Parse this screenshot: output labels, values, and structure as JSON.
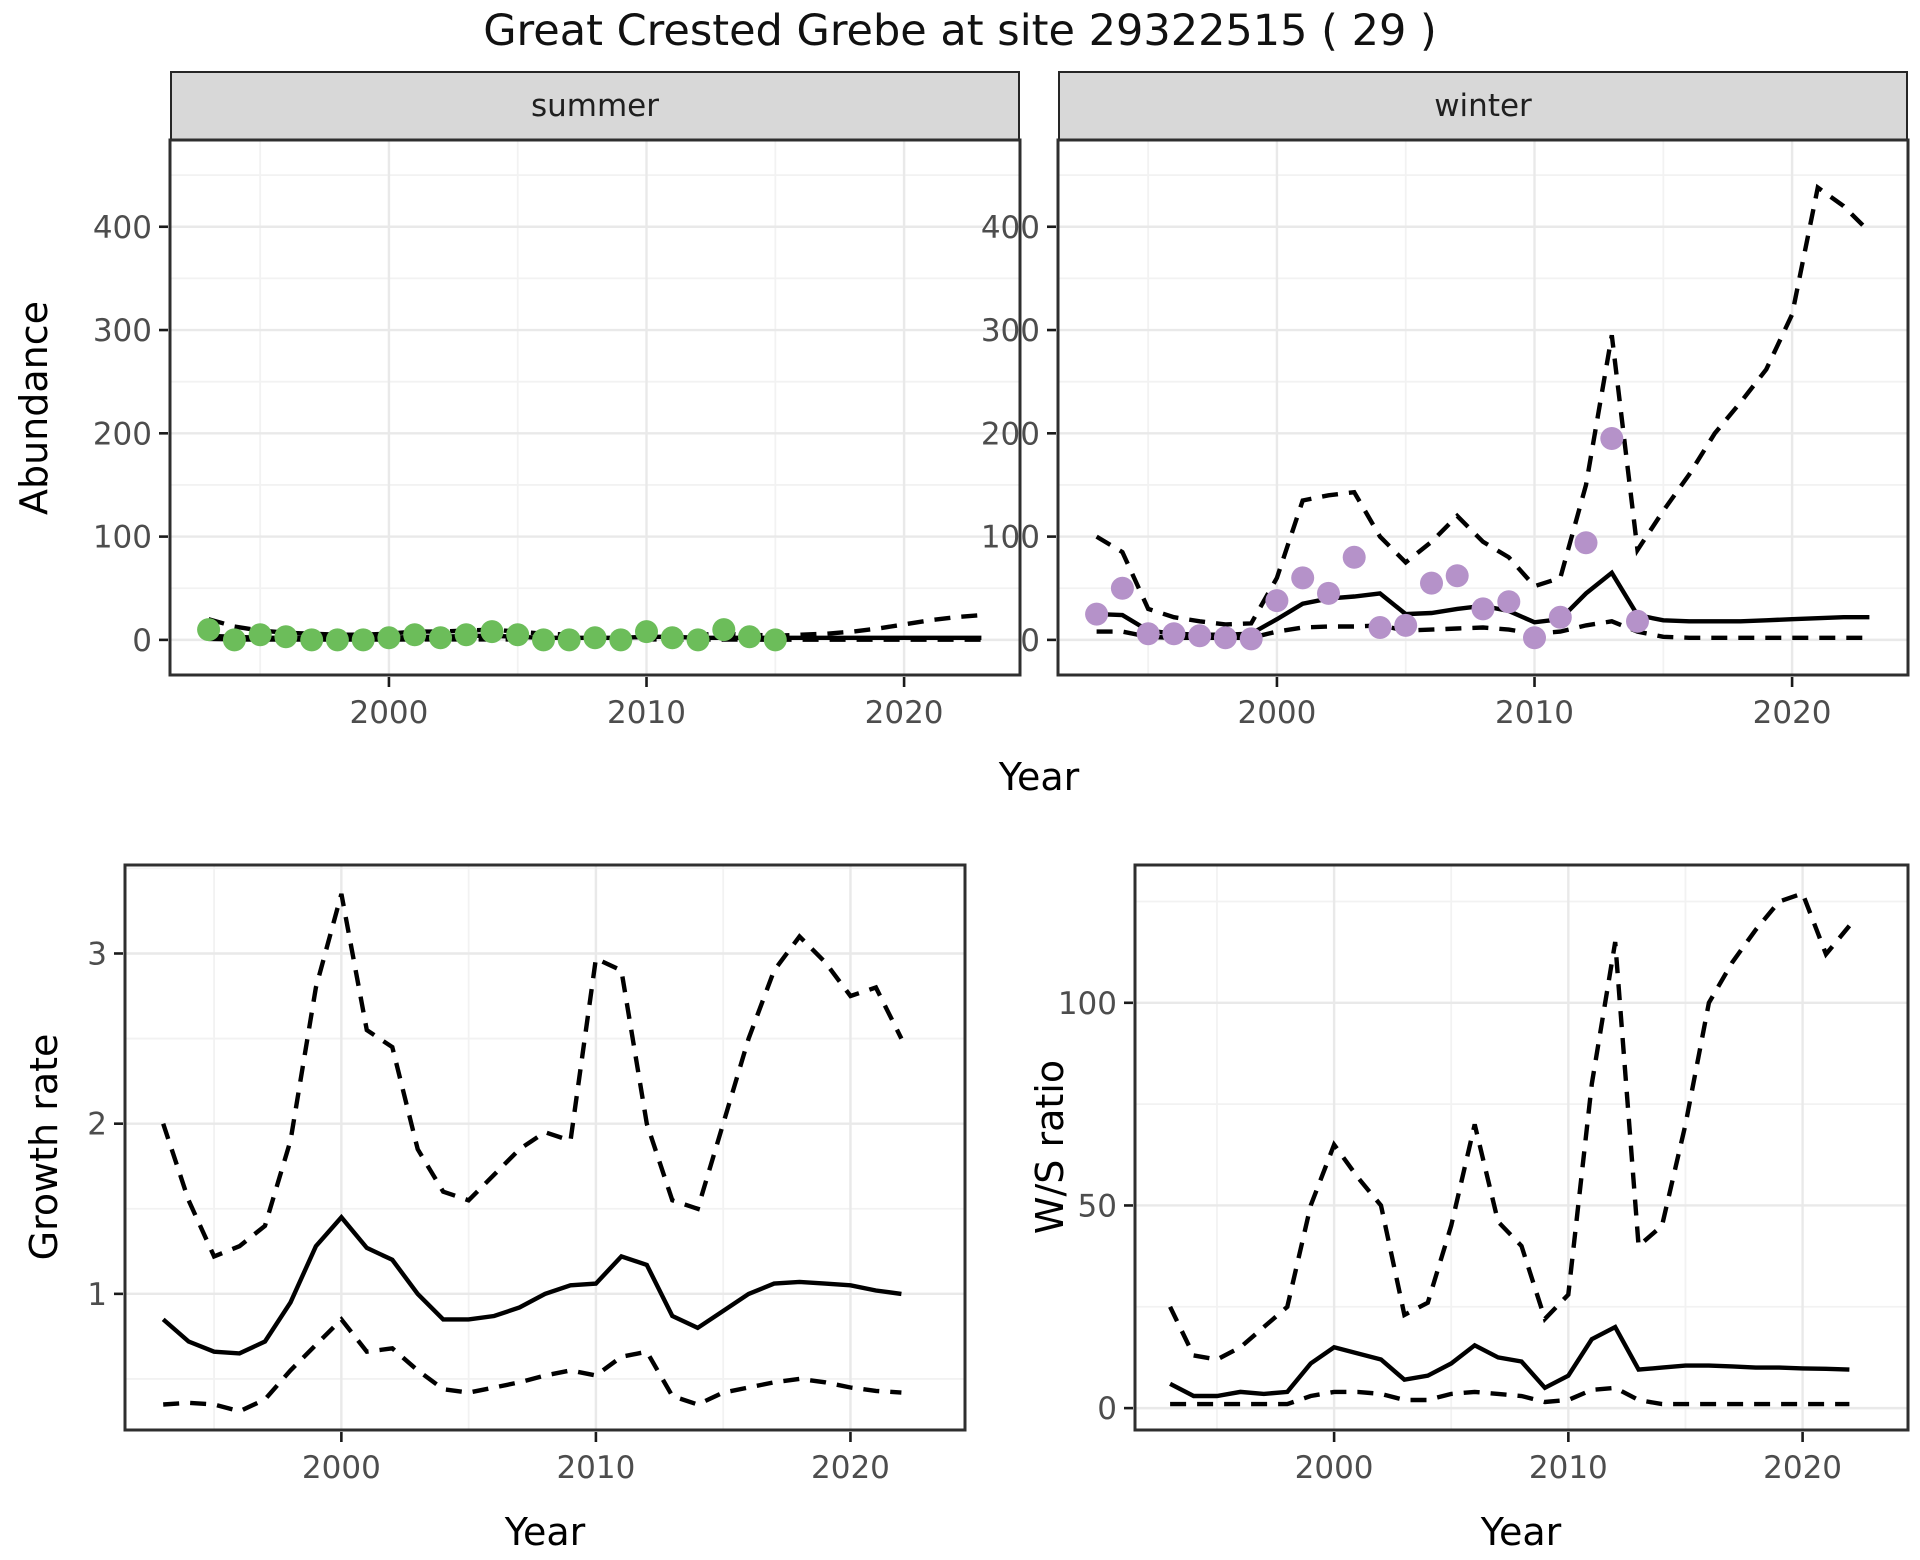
{
  "title": "Great Crested Grebe at site 29322515 ( 29 )",
  "colors": {
    "summer_point": "#6cbd5a",
    "winter_point": "#b592c9",
    "line": "#000000",
    "grid_major": "#e9e9e9",
    "grid_minor": "#f2f2f2",
    "strip_fill": "#d8d8d8",
    "panel_border": "#2f2f2f",
    "tick_mark": "#1a1a1a",
    "tick_label": "#4d4d4d"
  },
  "top_row": {
    "facets": [
      {
        "label": "summer"
      },
      {
        "label": "winter"
      }
    ],
    "y_title": "Abundance",
    "x_title": "Year"
  },
  "bottom_left": {
    "y_title": "Growth rate",
    "x_title": "Year"
  },
  "bottom_right": {
    "y_title": "W/S ratio",
    "x_title": "Year"
  },
  "chart_data": [
    {
      "id": "summer",
      "type": "line",
      "facet": "summer",
      "xlabel": "Year",
      "ylabel": "Abundance",
      "xlim": [
        1991.5,
        2024.5
      ],
      "ylim": [
        -34,
        484
      ],
      "x_ticks": [
        2000,
        2010,
        2020
      ],
      "x_minor": [
        1995,
        2005,
        2015
      ],
      "y_ticks": [
        0,
        100,
        200,
        300,
        400
      ],
      "y_minor": [
        50,
        150,
        250,
        350,
        450
      ],
      "years": [
        1993,
        1994,
        1995,
        1996,
        1997,
        1998,
        1999,
        2000,
        2001,
        2002,
        2003,
        2004,
        2005,
        2006,
        2007,
        2008,
        2009,
        2010,
        2011,
        2012,
        2013,
        2014,
        2015,
        2016,
        2017,
        2018,
        2019,
        2020,
        2021,
        2022,
        2023
      ],
      "series": [
        {
          "name": "fit",
          "style": "solid",
          "values": [
            4,
            3,
            2,
            2,
            2,
            2,
            2,
            2,
            3,
            3,
            4,
            4,
            3,
            2,
            2,
            2,
            2,
            3,
            3,
            2,
            2,
            2,
            2,
            2,
            2,
            2,
            2,
            2,
            2,
            2,
            2
          ]
        },
        {
          "name": "upper_ci",
          "style": "dashed",
          "values": [
            20,
            13,
            9,
            7,
            6,
            5,
            5,
            6,
            8,
            8,
            9,
            10,
            8,
            6,
            5,
            5,
            5,
            8,
            7,
            5,
            6,
            5,
            4,
            5,
            6,
            8,
            11,
            15,
            19,
            22,
            24
          ]
        },
        {
          "name": "lower_ci",
          "style": "dashed",
          "values": [
            1,
            0.5,
            0.3,
            0.3,
            0.3,
            0.3,
            0.3,
            0.3,
            0.5,
            0.5,
            0.5,
            0.5,
            0.5,
            0.3,
            0.3,
            0.3,
            0.3,
            0.5,
            0.5,
            0.3,
            0.3,
            0.3,
            0.2,
            0.2,
            0.2,
            0.2,
            0.2,
            0.2,
            0.2,
            0.2,
            0.2
          ]
        }
      ],
      "points": {
        "name": "observed_counts",
        "color_key": "summer_point",
        "years": [
          1993,
          1994,
          1995,
          1996,
          1997,
          1998,
          1999,
          2000,
          2001,
          2002,
          2003,
          2004,
          2005,
          2006,
          2007,
          2008,
          2009,
          2010,
          2011,
          2012,
          2013,
          2014,
          2015
        ],
        "values": [
          10,
          0,
          5,
          3,
          0,
          0,
          0,
          2,
          5,
          2,
          5,
          8,
          5,
          0,
          0,
          2,
          0,
          8,
          2,
          0,
          10,
          3,
          0
        ]
      }
    },
    {
      "id": "winter",
      "type": "line",
      "facet": "winter",
      "xlabel": "Year",
      "ylabel": "Abundance",
      "xlim": [
        1991.5,
        2024.5
      ],
      "ylim": [
        -34,
        484
      ],
      "x_ticks": [
        2000,
        2010,
        2020
      ],
      "x_minor": [
        1995,
        2005,
        2015
      ],
      "y_ticks": [
        0,
        100,
        200,
        300,
        400
      ],
      "y_minor": [
        50,
        150,
        250,
        350,
        450
      ],
      "years": [
        1993,
        1994,
        1995,
        1996,
        1997,
        1998,
        1999,
        2000,
        2001,
        2002,
        2003,
        2004,
        2005,
        2006,
        2007,
        2008,
        2009,
        2010,
        2011,
        2012,
        2013,
        2014,
        2015,
        2016,
        2017,
        2018,
        2019,
        2020,
        2021,
        2022,
        2023
      ],
      "series": [
        {
          "name": "fit",
          "style": "solid",
          "values": [
            25,
            24,
            9,
            6,
            5,
            5,
            6,
            20,
            35,
            40,
            42,
            45,
            25,
            26,
            30,
            33,
            28,
            17,
            20,
            45,
            65,
            24,
            19,
            18,
            18,
            18,
            19,
            20,
            21,
            22,
            22
          ]
        },
        {
          "name": "upper_ci",
          "style": "dashed",
          "values": [
            100,
            85,
            30,
            22,
            18,
            15,
            16,
            60,
            135,
            140,
            143,
            100,
            75,
            95,
            120,
            95,
            80,
            52,
            60,
            150,
            295,
            87,
            125,
            160,
            200,
            230,
            262,
            315,
            438,
            420,
            395
          ]
        },
        {
          "name": "lower_ci",
          "style": "dashed",
          "values": [
            8,
            8,
            3,
            2,
            2,
            2,
            2,
            8,
            12,
            13,
            13,
            14,
            9,
            10,
            11,
            12,
            10,
            6,
            8,
            14,
            18,
            8,
            3,
            2,
            2,
            2,
            2,
            2,
            2,
            2,
            2
          ]
        }
      ],
      "points": {
        "name": "observed_counts",
        "color_key": "winter_point",
        "years": [
          1993,
          1994,
          1995,
          1996,
          1997,
          1998,
          1999,
          2000,
          2001,
          2002,
          2003,
          2004,
          2005,
          2006,
          2007,
          2008,
          2009,
          2010,
          2011,
          2012,
          2013,
          2014
        ],
        "values": [
          25,
          50,
          6,
          6,
          4,
          2,
          1,
          38,
          60,
          45,
          80,
          12,
          14,
          55,
          62,
          30,
          37,
          2,
          22,
          94,
          195,
          18
        ]
      }
    },
    {
      "id": "growth",
      "type": "line",
      "title": "Growth rate",
      "xlabel": "Year",
      "ylabel": "Growth rate",
      "xlim": [
        1991.5,
        2024.5
      ],
      "ylim": [
        0.2,
        3.52
      ],
      "x_ticks": [
        2000,
        2010,
        2020
      ],
      "x_minor": [
        1995,
        2005,
        2015
      ],
      "y_ticks": [
        1,
        2,
        3
      ],
      "y_minor": [
        0.5,
        1.5,
        2.5,
        3.5
      ],
      "years": [
        1993,
        1994,
        1995,
        1996,
        1997,
        1998,
        1999,
        2000,
        2001,
        2002,
        2003,
        2004,
        2005,
        2006,
        2007,
        2008,
        2009,
        2010,
        2011,
        2012,
        2013,
        2014,
        2015,
        2016,
        2017,
        2018,
        2019,
        2020,
        2021,
        2022
      ],
      "series": [
        {
          "name": "fit",
          "style": "solid",
          "values": [
            0.85,
            0.72,
            0.66,
            0.65,
            0.72,
            0.95,
            1.28,
            1.45,
            1.27,
            1.2,
            1.0,
            0.85,
            0.85,
            0.87,
            0.92,
            1.0,
            1.05,
            1.06,
            1.22,
            1.17,
            0.87,
            0.8,
            0.9,
            1.0,
            1.06,
            1.07,
            1.06,
            1.05,
            1.02,
            1.0
          ]
        },
        {
          "name": "upper_ci",
          "style": "dashed",
          "values": [
            2.0,
            1.55,
            1.22,
            1.28,
            1.4,
            1.9,
            2.8,
            3.35,
            2.55,
            2.45,
            1.85,
            1.6,
            1.55,
            1.7,
            1.85,
            1.95,
            1.9,
            2.97,
            2.9,
            2.0,
            1.55,
            1.5,
            2.0,
            2.5,
            2.9,
            3.1,
            2.95,
            2.75,
            2.8,
            2.5
          ]
        },
        {
          "name": "lower_ci",
          "style": "dashed",
          "values": [
            0.35,
            0.36,
            0.35,
            0.31,
            0.38,
            0.55,
            0.7,
            0.85,
            0.66,
            0.68,
            0.55,
            0.44,
            0.42,
            0.45,
            0.48,
            0.52,
            0.55,
            0.52,
            0.63,
            0.66,
            0.4,
            0.35,
            0.42,
            0.45,
            0.48,
            0.5,
            0.48,
            0.45,
            0.43,
            0.42
          ]
        }
      ]
    },
    {
      "id": "ws_ratio",
      "type": "line",
      "title": "W/S ratio",
      "xlabel": "Year",
      "ylabel": "W/S ratio",
      "xlim": [
        1991.5,
        2024.5
      ],
      "ylim": [
        -5.4,
        134
      ],
      "x_ticks": [
        2000,
        2010,
        2020
      ],
      "x_minor": [
        1995,
        2005,
        2015
      ],
      "y_ticks": [
        0,
        50,
        100
      ],
      "y_minor": [
        25,
        75,
        125
      ],
      "years": [
        1993,
        1994,
        1995,
        1996,
        1997,
        1998,
        1999,
        2000,
        2001,
        2002,
        2003,
        2004,
        2005,
        2006,
        2007,
        2008,
        2009,
        2010,
        2011,
        2012,
        2013,
        2014,
        2015,
        2016,
        2017,
        2018,
        2019,
        2020,
        2021,
        2022
      ],
      "series": [
        {
          "name": "fit",
          "style": "solid",
          "values": [
            6,
            3,
            3,
            4,
            3.5,
            4,
            11,
            15,
            13.5,
            12,
            7,
            8,
            11,
            15.5,
            12.5,
            11.5,
            5,
            8,
            17,
            20,
            9.5,
            10,
            10.5,
            10.5,
            10.3,
            10,
            10,
            9.8,
            9.7,
            9.5
          ]
        },
        {
          "name": "upper_ci",
          "style": "dashed",
          "values": [
            25,
            13,
            12,
            15,
            20,
            25,
            50,
            65,
            57,
            50,
            23,
            26,
            45,
            70,
            46,
            40,
            22,
            28,
            80,
            115,
            40,
            45,
            70,
            100,
            110,
            118,
            125,
            127,
            112,
            119
          ]
        },
        {
          "name": "lower_ci",
          "style": "dashed",
          "values": [
            1,
            1,
            1,
            1,
            1,
            1,
            3,
            4,
            4,
            3.5,
            2,
            2,
            3.5,
            4,
            3.5,
            3,
            1.5,
            2,
            4.5,
            5,
            2,
            1,
            1,
            1,
            1,
            1,
            1,
            1,
            1,
            1
          ]
        }
      ]
    }
  ]
}
